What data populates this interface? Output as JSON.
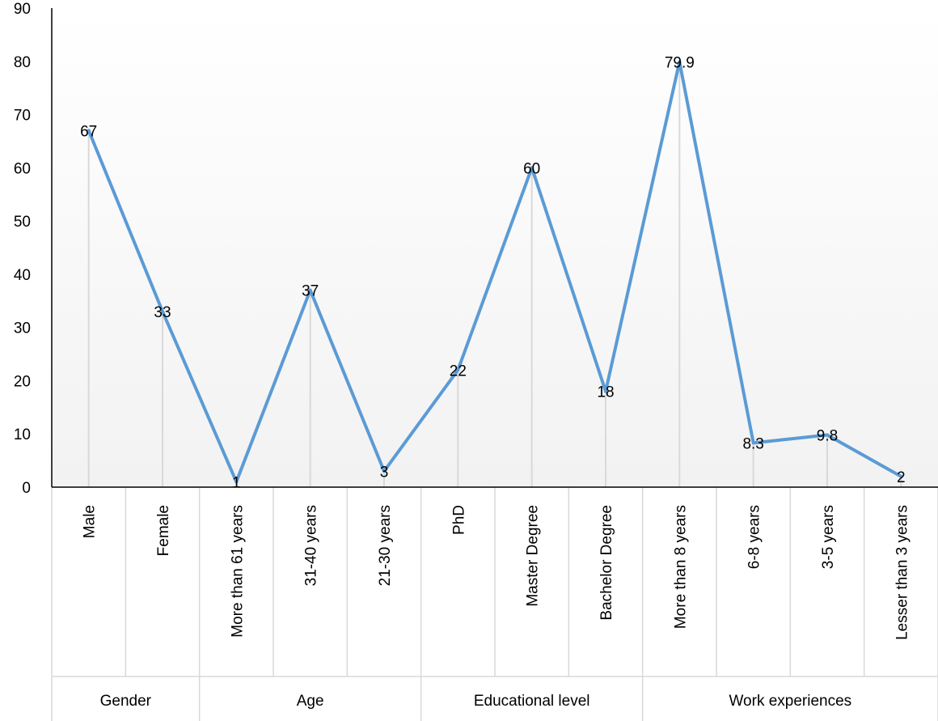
{
  "chart_data": {
    "type": "line",
    "title": "",
    "xlabel": "",
    "ylabel": "",
    "ylim": [
      0,
      90
    ],
    "ytick_step": 10,
    "yticks": [
      "0",
      "10",
      "20",
      "30",
      "40",
      "50",
      "60",
      "70",
      "80",
      "90"
    ],
    "grid": false,
    "drop_lines": true,
    "line_color": "#5b9bd5",
    "background_gradient": [
      "#ffffff",
      "#f2f2f2"
    ],
    "categories": [
      "Male",
      "Female",
      "More than 61 years",
      "31-40 years",
      "21-30 years",
      "PhD",
      "Master Degree",
      "Bachelor Degree",
      "More than 8 years",
      "6-8 years",
      "3-5 years",
      "Lesser than 3 years"
    ],
    "groups": [
      {
        "label": "Gender",
        "count": 2
      },
      {
        "label": "Age",
        "count": 3
      },
      {
        "label": "Educational level",
        "count": 3
      },
      {
        "label": "Work experiences",
        "count": 4
      }
    ],
    "series": [
      {
        "values": [
          67,
          33,
          1,
          37,
          3,
          22,
          60,
          18,
          79.9,
          8.3,
          9.8,
          2
        ],
        "data_labels": [
          "67",
          "33",
          "1",
          "37",
          "3",
          "22",
          "60",
          "18",
          "79.9",
          "8.3",
          "9.8",
          "2"
        ]
      }
    ]
  }
}
